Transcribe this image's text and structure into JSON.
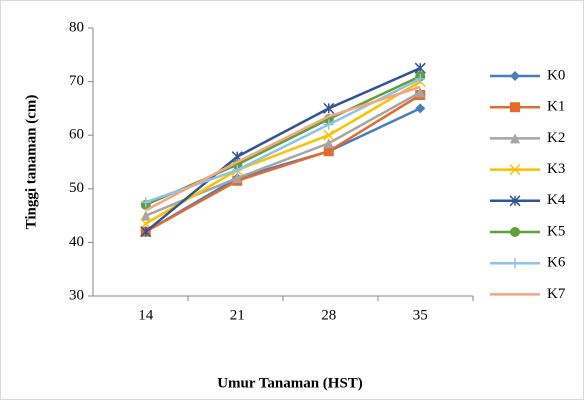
{
  "chart_data": {
    "type": "line",
    "x_label": "Umur Tanaman (HST)",
    "y_label": "Tinggi tanaman (cm)",
    "categories": [
      "14",
      "21",
      "28",
      "35"
    ],
    "ylim": [
      30,
      80
    ],
    "yticks": [
      30,
      40,
      50,
      60,
      70,
      80
    ],
    "grid": false,
    "legend": "right",
    "series": [
      {
        "name": "K0",
        "color": "#4a7ebb",
        "marker": "diamond",
        "values": [
          42,
          52,
          57,
          65
        ]
      },
      {
        "name": "K1",
        "color": "#e36c2c",
        "marker": "square",
        "values": [
          42,
          51.5,
          57,
          67.5
        ]
      },
      {
        "name": "K2",
        "color": "#a5a5a5",
        "marker": "triangle",
        "values": [
          45,
          52,
          58.5,
          68
        ]
      },
      {
        "name": "K3",
        "color": "#ffc000",
        "marker": "x",
        "values": [
          43.5,
          53.5,
          60,
          70
        ]
      },
      {
        "name": "K4",
        "color": "#2f5597",
        "marker": "star",
        "values": [
          42,
          56,
          65,
          72.5
        ]
      },
      {
        "name": "K5",
        "color": "#5fa03a",
        "marker": "circle",
        "values": [
          47,
          54.5,
          63,
          71
        ]
      },
      {
        "name": "K6",
        "color": "#8fc1ea",
        "marker": "plus",
        "values": [
          47.5,
          53.5,
          62,
          70.5
        ]
      },
      {
        "name": "K7",
        "color": "#f4a582",
        "marker": "none",
        "values": [
          46,
          55,
          63.5,
          69
        ]
      }
    ]
  }
}
